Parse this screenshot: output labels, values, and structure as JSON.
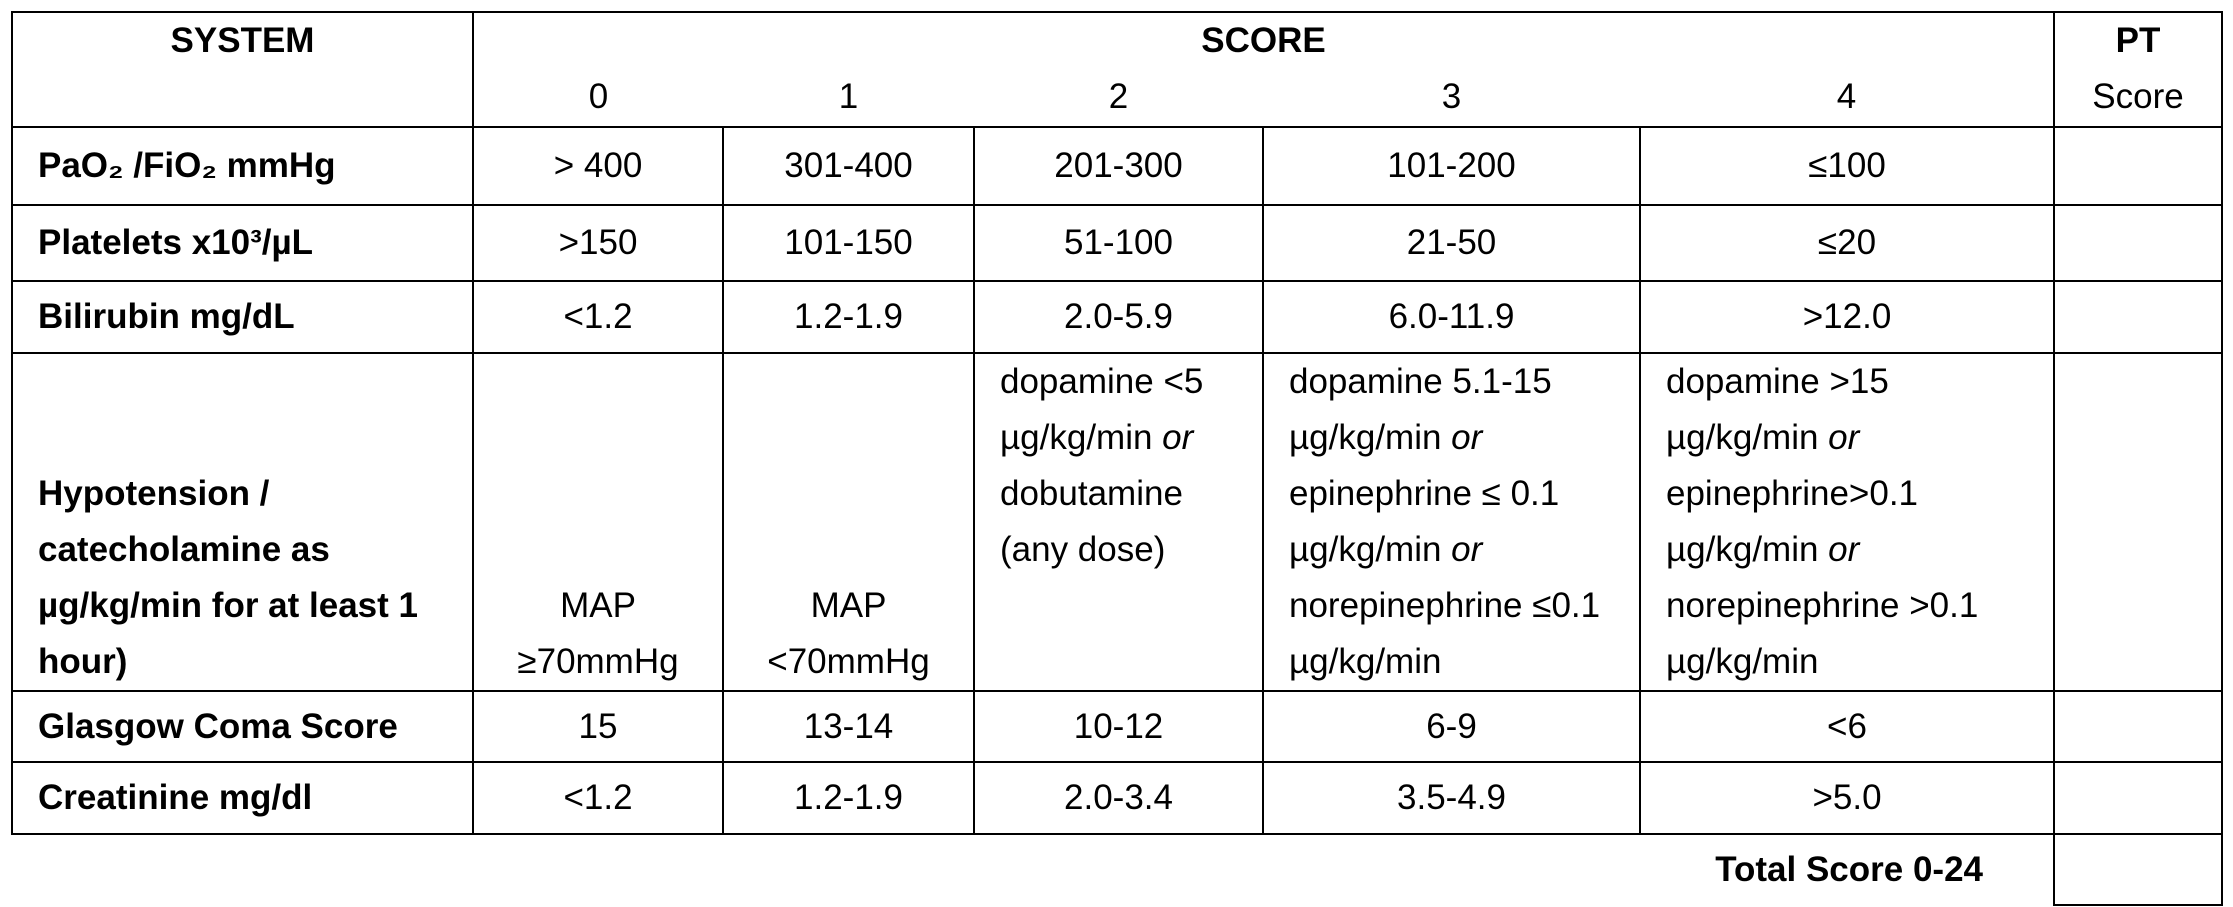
{
  "header": {
    "system": "SYSTEM",
    "score": "SCORE",
    "score_levels": [
      "0",
      "1",
      "2",
      "3",
      "4"
    ],
    "pt": "PT",
    "pt_sub": "Score"
  },
  "rows": [
    {
      "system": "PaO₂ /FiO₂ mmHg",
      "cells": [
        "> 400",
        "301-400",
        "201-300",
        "101-200",
        "≤100"
      ]
    },
    {
      "system": "Platelets x10³/µL",
      "cells": [
        ">150",
        "101-150",
        "51-100",
        "21-50",
        "≤20"
      ]
    },
    {
      "system": "Bilirubin mg/dL",
      "cells": [
        "<1.2",
        "1.2-1.9",
        "2.0-5.9",
        "6.0-11.9",
        ">12.0"
      ]
    },
    {
      "system": "Hypotension / catecholamine as µg/kg/min for at least 1 hour)",
      "cells": [
        "MAP ≥70mmHg",
        "MAP <70mmHg",
        [
          "dopamine <5 µg/kg/min ",
          {
            "text": "or",
            "em": true
          },
          " dobutamine (any dose)"
        ],
        [
          "dopamine 5.1-15 µg/kg/min ",
          {
            "text": "or",
            "em": true
          },
          " epinephrine ≤ 0.1 µg/kg/min ",
          {
            "text": "or",
            "em": true
          },
          " norepinephrine ≤0.1 µg/kg/min"
        ],
        [
          "dopamine >15 µg/kg/min ",
          {
            "text": "or",
            "em": true
          },
          " epinephrine>0.1 µg/kg/min ",
          {
            "text": "or",
            "em": true
          },
          " norepinephrine >0.1 µg/kg/min"
        ]
      ]
    },
    {
      "system": "Glasgow Coma Score",
      "cells": [
        "15",
        "13-14",
        "10-12",
        "6-9",
        "<6"
      ]
    },
    {
      "system": "Creatinine mg/dl",
      "cells": [
        "<1.2",
        "1.2-1.9",
        "2.0-3.4",
        "3.5-4.9",
        ">5.0"
      ]
    }
  ],
  "total": "Total Score 0-24"
}
